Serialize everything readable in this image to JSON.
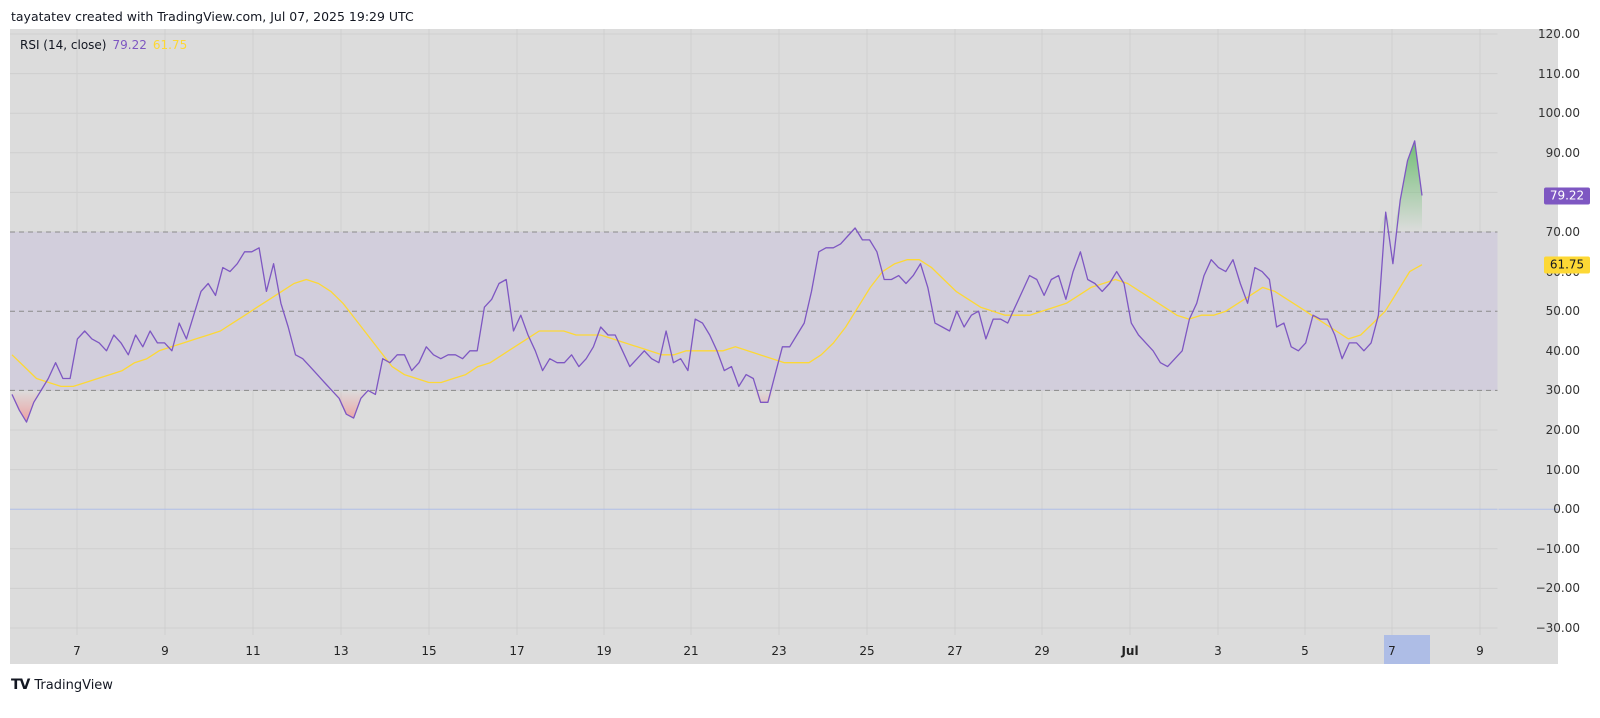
{
  "header": {
    "attribution": "tayatatev created with TradingView.com, Jul 07, 2025 19:29 UTC"
  },
  "legend": {
    "indicator": "RSI (14, close)",
    "rsi_value": "79.22",
    "ma_value": "61.75"
  },
  "badges": {
    "rsi": "79.22",
    "ma": "61.75"
  },
  "y_axis": {
    "ticks": [
      "120.00",
      "110.00",
      "100.00",
      "90.00",
      "70.00",
      "60.00",
      "50.00",
      "40.00",
      "30.00",
      "20.00",
      "10.00",
      "0.00",
      "−10.00",
      "−20.00",
      "−30.00"
    ]
  },
  "x_axis": {
    "ticks": [
      "7",
      "9",
      "11",
      "13",
      "15",
      "17",
      "19",
      "21",
      "23",
      "25",
      "27",
      "29",
      "Jul",
      "3",
      "5",
      "7",
      "9"
    ],
    "highlighted": "7"
  },
  "footer": {
    "brand": "TradingView",
    "logo": "tv-logo"
  },
  "colors": {
    "rsi_line": "#7e57c2",
    "ma_line": "#fdd835",
    "band_fill": "#d2cedc",
    "background": "#dcdcdc",
    "overbought_fill": "#66bb6a",
    "oversold_fill": "#ef9a9a",
    "highlight": "#aebde6"
  },
  "chart_data": {
    "type": "line",
    "title": "RSI (14, close)",
    "xlabel": "",
    "ylabel": "",
    "ylim": [
      -30,
      120
    ],
    "grid": true,
    "x_tick_labels": [
      "7",
      "9",
      "11",
      "13",
      "15",
      "17",
      "19",
      "21",
      "23",
      "25",
      "27",
      "29",
      "Jul",
      "3",
      "5",
      "7",
      "9"
    ],
    "bands": {
      "upper": 70,
      "middle": 50,
      "lower": 30
    },
    "series": [
      {
        "name": "RSI",
        "color": "#7e57c2",
        "last_value": 79.22,
        "values": [
          29,
          25,
          22,
          27,
          30,
          33,
          37,
          33,
          33,
          43,
          45,
          43,
          42,
          40,
          44,
          42,
          39,
          44,
          41,
          45,
          42,
          42,
          40,
          47,
          43,
          49,
          55,
          57,
          54,
          61,
          60,
          62,
          65,
          65,
          66,
          55,
          62,
          52,
          46,
          39,
          38,
          36,
          34,
          32,
          30,
          28,
          24,
          23,
          28,
          30,
          29,
          38,
          37,
          39,
          39,
          35,
          37,
          41,
          39,
          38,
          39,
          39,
          38,
          40,
          40,
          51,
          53,
          57,
          58,
          45,
          49,
          44,
          40,
          35,
          38,
          37,
          37,
          39,
          36,
          38,
          41,
          46,
          44,
          44,
          40,
          36,
          38,
          40,
          38,
          37,
          45,
          37,
          38,
          35,
          48,
          47,
          44,
          40,
          35,
          36,
          31,
          34,
          33,
          27,
          27,
          34,
          41,
          41,
          44,
          47,
          55,
          65,
          66,
          66,
          67,
          69,
          71,
          68,
          68,
          65,
          58,
          58,
          59,
          57,
          59,
          62,
          56,
          47,
          46,
          45,
          50,
          46,
          49,
          50,
          43,
          48,
          48,
          47,
          51,
          55,
          59,
          58,
          54,
          58,
          59,
          53,
          60,
          65,
          58,
          57,
          55,
          57,
          60,
          57,
          47,
          44,
          42,
          40,
          37,
          36,
          38,
          40,
          48,
          52,
          59,
          63,
          61,
          60,
          63,
          57,
          52,
          61,
          60,
          58,
          46,
          47,
          41,
          40,
          42,
          49,
          48,
          48,
          44,
          38,
          42,
          42,
          40,
          42,
          49,
          75,
          62,
          78,
          88,
          93,
          79.22
        ]
      },
      {
        "name": "RSI-based MA",
        "color": "#fdd835",
        "last_value": 61.75,
        "values": [
          39,
          36,
          33,
          32,
          31,
          31,
          32,
          33,
          34,
          35,
          37,
          38,
          40,
          41,
          42,
          43,
          44,
          45,
          47,
          49,
          51,
          53,
          55,
          57,
          58,
          57,
          55,
          52,
          48,
          44,
          40,
          36,
          34,
          33,
          32,
          32,
          33,
          34,
          36,
          37,
          39,
          41,
          43,
          45,
          45,
          45,
          44,
          44,
          44,
          43,
          42,
          41,
          40,
          39,
          39,
          40,
          40,
          40,
          40,
          41,
          40,
          39,
          38,
          37,
          37,
          37,
          39,
          42,
          46,
          51,
          56,
          60,
          62,
          63,
          63,
          61,
          58,
          55,
          53,
          51,
          50,
          49,
          49,
          49,
          50,
          51,
          52,
          54,
          56,
          57,
          58,
          57,
          55,
          53,
          51,
          49,
          48,
          49,
          49,
          50,
          52,
          54,
          56,
          55,
          53,
          51,
          49,
          47,
          45,
          43,
          44,
          47,
          50,
          55,
          60,
          61.75
        ]
      }
    ]
  }
}
